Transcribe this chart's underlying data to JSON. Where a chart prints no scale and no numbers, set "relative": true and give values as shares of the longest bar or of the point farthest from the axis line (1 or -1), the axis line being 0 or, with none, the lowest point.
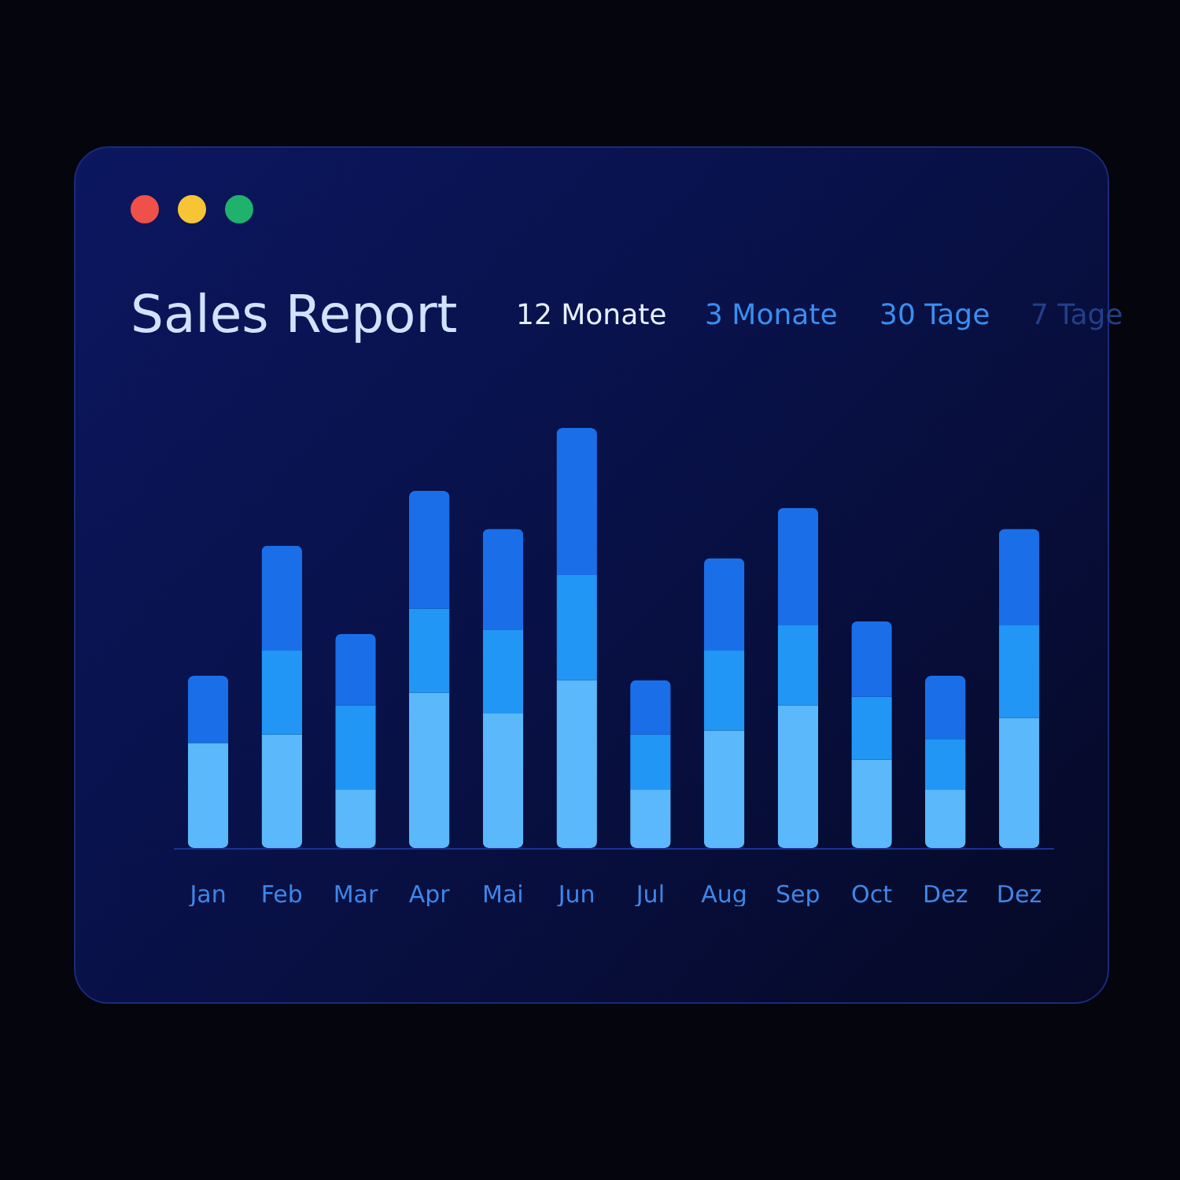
{
  "chart_data": {
    "type": "bar",
    "title": "Sales Report",
    "annotations": [
      "12 Monate",
      "3 Monate",
      "30 Tage",
      "7 Tage"
    ],
    "categories": [
      "Jan",
      "Feb",
      "Mar",
      "Apr",
      "Mai",
      "Jun",
      "Jul",
      "Aug",
      "Sep",
      "Oct",
      "Dez",
      "Dez"
    ],
    "stacked": true,
    "relative": true,
    "series": [
      {
        "color": "#5ab8fb",
        "values": [
          0.25,
          0.27,
          0.14,
          0.37,
          0.32,
          0.4,
          0.14,
          0.28,
          0.34,
          0.21,
          0.14,
          0.31
        ]
      },
      {
        "color": "#2196f5",
        "values": [
          0,
          0.2,
          0.2,
          0.2,
          0.2,
          0.25,
          0.13,
          0.19,
          0.19,
          0.15,
          0.12,
          0.22
        ]
      },
      {
        "color": "#1a6fe8",
        "values": [
          0.16,
          0.25,
          0.17,
          0.28,
          0.24,
          0.35,
          0.13,
          0.22,
          0.28,
          0.18,
          0.15,
          0.23
        ]
      }
    ]
  }
}
